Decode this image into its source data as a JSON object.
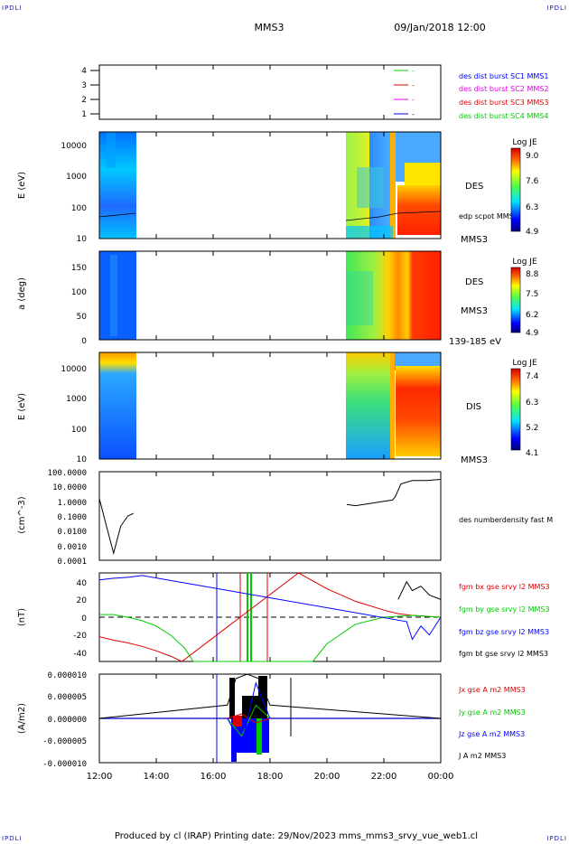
{
  "corner_labels": {
    "top_left": "IPDLI",
    "top_right": "IPDLI",
    "bottom_left": "IPDLI",
    "bottom_right": "IPDLI"
  },
  "header": {
    "spacecraft": "MMS3",
    "datetime": "09/Jan/2018 12:00"
  },
  "footer": {
    "text": "Produced by cl (IRAP)   Printing date: 29/Nov/2023   mms_mms3_srvy_vue_web1.cl"
  },
  "time_axis": {
    "ticks": [
      "12:00",
      "14:00",
      "16:00",
      "18:00",
      "20:00",
      "22:00",
      "00:00"
    ]
  },
  "colors": {
    "blue": "#0000ff",
    "red": "#dd0000",
    "green": "#00cc00",
    "magenta": "#e600e6",
    "black": "#000000"
  },
  "chart_data": [
    {
      "type": "line",
      "panel": "burst-indicator",
      "ylim": [
        0.5,
        4.5
      ],
      "ytick_labels": [
        "1",
        "2",
        "3",
        "4"
      ],
      "legend_left": [
        {
          "label": "-",
          "color": "#00cc00"
        },
        {
          "label": "-",
          "color": "#dd0000"
        },
        {
          "label": "-",
          "color": "#e600e6"
        },
        {
          "label": "-",
          "color": "#0000ff"
        }
      ],
      "right_labels": [
        {
          "text": "des dist burst SC1 MMS1",
          "color": "#0000ff"
        },
        {
          "text": "des dist burst SC2 MMS2",
          "color": "#e600e6"
        },
        {
          "text": "des dist burst SC3 MMS3",
          "color": "#dd0000"
        },
        {
          "text": "des dist burst SC4 MMS4",
          "color": "#00cc00"
        }
      ]
    },
    {
      "type": "heatmap",
      "panel": "des-energy",
      "ylabel": "E (eV)",
      "ytick_labels": [
        "10",
        "100",
        "1000",
        "10000"
      ],
      "right_labels": [
        "DES",
        "MMS3"
      ],
      "overlay_label": "edp scpot MMS3",
      "colorbar": {
        "title": "Log JE",
        "ticks": [
          "9.0",
          "7.6",
          "6.3",
          "4.9"
        ]
      }
    },
    {
      "type": "heatmap",
      "panel": "des-pitch-angle",
      "ylabel": "a (deg)",
      "ytick_labels": [
        "0",
        "50",
        "100",
        "150"
      ],
      "right_labels": [
        "DES",
        "MMS3"
      ],
      "sub_label": "139-185 eV",
      "colorbar": {
        "title": "Log JE",
        "ticks": [
          "8.8",
          "7.5",
          "6.2",
          "4.9"
        ]
      }
    },
    {
      "type": "heatmap",
      "panel": "dis-energy",
      "ylabel": "E (eV)",
      "ytick_labels": [
        "10",
        "100",
        "1000",
        "10000"
      ],
      "right_labels": [
        "DIS",
        "MMS3"
      ],
      "colorbar": {
        "title": "Log JE",
        "ticks": [
          "7.4",
          "6.3",
          "5.2",
          "4.1"
        ]
      }
    },
    {
      "type": "line",
      "panel": "density",
      "ylabel": "(cm^-3)",
      "ytick_labels": [
        "0.0001",
        "0.0010",
        "0.0100",
        "0.1000",
        "1.0000",
        "10.0000",
        "100.0000"
      ],
      "ylim": [
        0.0001,
        100
      ],
      "series_label": "des numberdensity fast M",
      "series": [
        {
          "color": "#000000",
          "x": [
            12.0,
            12.25,
            12.5,
            12.75,
            13.0,
            13.2
          ],
          "y": [
            1.5,
            0.02,
            0.0003,
            0.02,
            0.1,
            0.15
          ]
        },
        {
          "color": "#000000",
          "x": [
            20.7,
            21.0,
            21.5,
            22.0,
            22.3,
            22.4,
            22.6,
            23.0,
            23.5,
            24.0
          ],
          "y": [
            0.6,
            0.5,
            0.7,
            1.0,
            1.2,
            2.0,
            15,
            25,
            25,
            30
          ]
        }
      ]
    },
    {
      "type": "line",
      "panel": "magnetic-field",
      "ylabel": "(nT)",
      "ylim": [
        -50,
        50
      ],
      "ytick_labels": [
        "-40",
        "-20",
        "0",
        "20",
        "40"
      ],
      "series": [
        {
          "name": "fgm bx gse srvy l2 MMS3",
          "color": "#dd0000",
          "x": [
            12.0,
            12.5,
            13.0,
            13.5,
            14.0,
            14.5,
            14.9,
            19.0,
            20.0,
            21.0,
            22.0,
            22.5,
            23.0,
            24.0
          ],
          "y": [
            -22,
            -26,
            -29,
            -33,
            -38,
            -44,
            -50,
            50,
            32,
            18,
            8,
            4,
            2,
            0
          ]
        },
        {
          "name": "fgm by gse srvy l2 MMS3",
          "color": "#00cc00",
          "x": [
            12.0,
            12.5,
            13.0,
            13.5,
            14.0,
            14.5,
            15.0,
            15.3,
            19.5,
            20.0,
            21.0,
            22.0,
            23.0,
            24.0
          ],
          "y": [
            3,
            3,
            0,
            -4,
            -10,
            -20,
            -35,
            -50,
            -50,
            -30,
            -8,
            0,
            2,
            0
          ]
        },
        {
          "name": "fgm bz gse srvy l2 MMS3",
          "color": "#0000ff",
          "x": [
            12.0,
            12.5,
            13.0,
            13.5,
            22.8,
            23.0,
            23.3,
            23.6,
            24.0
          ],
          "y": [
            42,
            44,
            45,
            47,
            -5,
            -25,
            -10,
            -20,
            0
          ]
        },
        {
          "name": "fgm bt gse srvy l2 MMS3",
          "color": "#000000",
          "x": [
            22.5,
            22.8,
            23.0,
            23.3,
            23.6,
            24.0
          ],
          "y": [
            20,
            40,
            30,
            35,
            25,
            20
          ]
        }
      ]
    },
    {
      "type": "line",
      "panel": "current-density",
      "ylabel": "(A/m2)",
      "ylim": [
        -0.0001,
        0.0001
      ],
      "ytick_labels": [
        "-0.000010",
        "-0.000005",
        "0.000000",
        "0.000005",
        "0.000010"
      ],
      "series": [
        {
          "name": "Jx gse A m2 MMS3",
          "color": "#dd0000",
          "x": [
            12.0,
            16.5,
            17.0,
            17.5,
            18.0,
            24.0
          ],
          "y": [
            0,
            0,
            1e-05,
            -1e-05,
            0,
            0
          ]
        },
        {
          "name": "Jy gse A m2 MMS3",
          "color": "#00cc00",
          "x": [
            12.0,
            16.5,
            17.0,
            17.5,
            18.0,
            24.0
          ],
          "y": [
            0,
            0,
            -4e-05,
            3e-05,
            0,
            0
          ]
        },
        {
          "name": "Jz gse A m2 MMS3",
          "color": "#0000ff",
          "x": [
            12.0,
            16.5,
            17.0,
            17.5,
            18.0,
            24.0
          ],
          "y": [
            0,
            0,
            -6e-05,
            8e-05,
            0,
            0
          ]
        },
        {
          "name": "J A m2 MMS3",
          "color": "#000000",
          "x": [
            12.0,
            16.5,
            16.8,
            17.2,
            17.6,
            18.0,
            24.0
          ],
          "y": [
            0,
            3e-05,
            9e-05,
            0.0001,
            9e-05,
            3e-05,
            0
          ]
        }
      ]
    }
  ]
}
